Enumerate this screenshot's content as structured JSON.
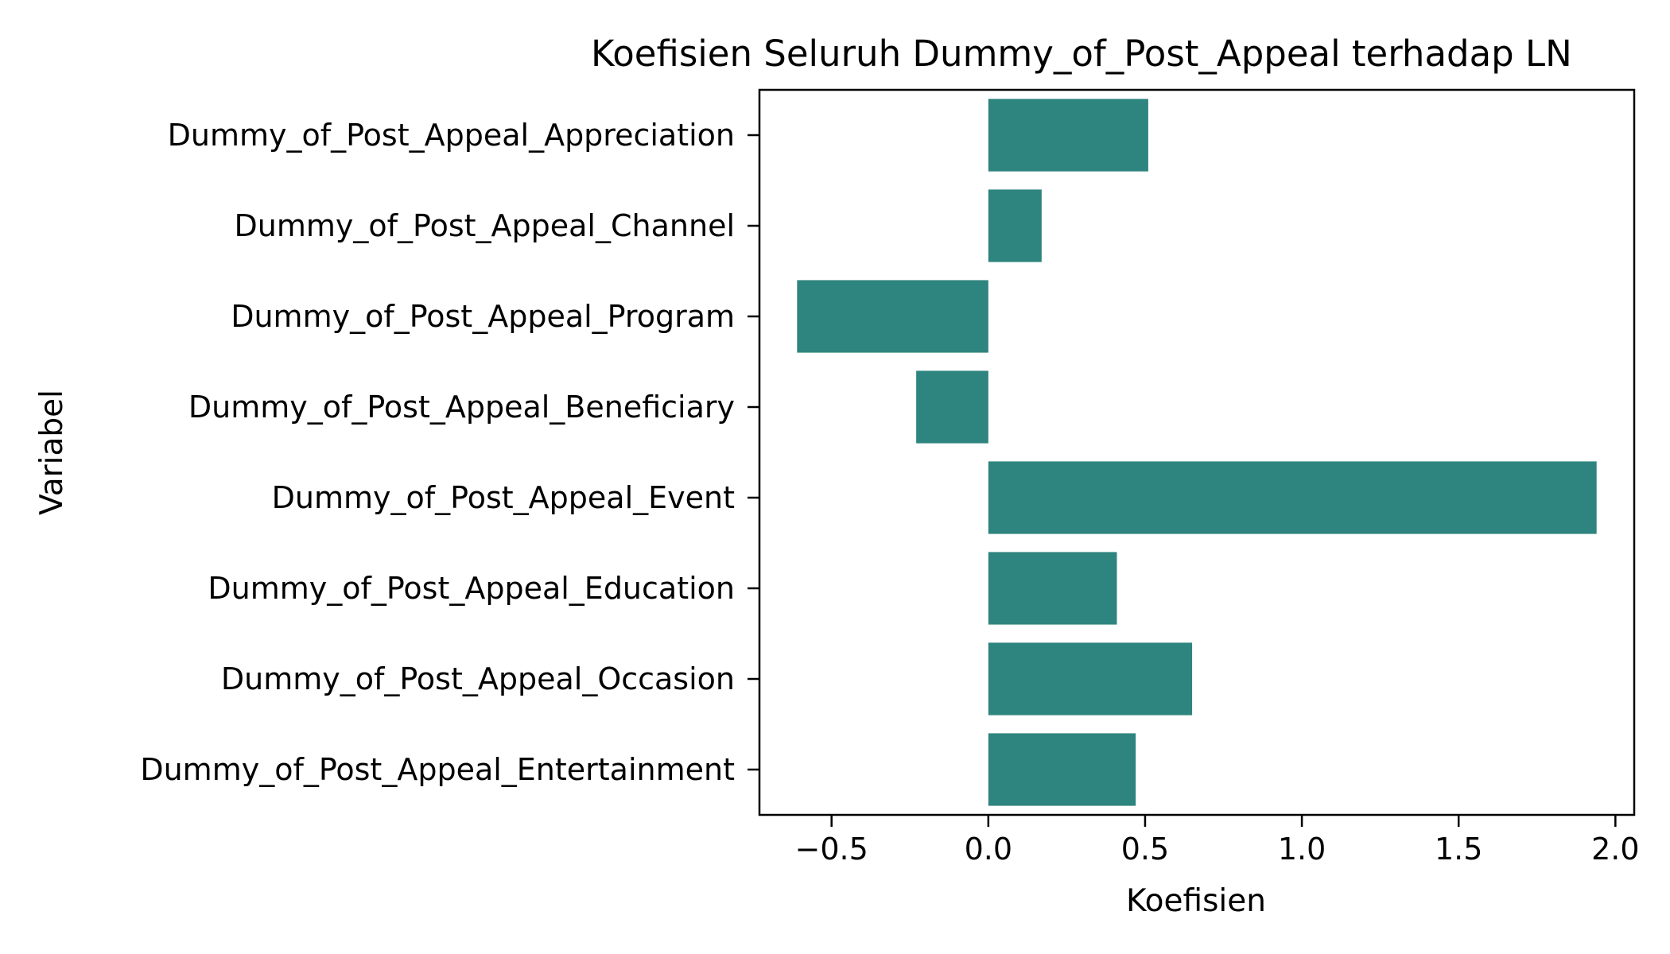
{
  "chart_data": {
    "type": "bar",
    "orientation": "horizontal",
    "title": "Koefisien Seluruh Dummy_of_Post_Appeal terhadap LN",
    "xlabel": "Koefisien",
    "ylabel": "Variabel",
    "categories": [
      "Dummy_of_Post_Appeal_Appreciation",
      "Dummy_of_Post_Appeal_Channel",
      "Dummy_of_Post_Appeal_Program",
      "Dummy_of_Post_Appeal_Beneficiary",
      "Dummy_of_Post_Appeal_Event",
      "Dummy_of_Post_Appeal_Education",
      "Dummy_of_Post_Appeal_Occasion",
      "Dummy_of_Post_Appeal_Entertainment"
    ],
    "values": [
      0.51,
      0.17,
      -0.61,
      -0.23,
      1.94,
      0.41,
      0.65,
      0.47
    ],
    "xlim": [
      -0.73,
      2.06
    ],
    "xticks": [
      -0.5,
      0.0,
      0.5,
      1.0,
      1.5,
      2.0
    ],
    "xtick_labels": [
      "−0.5",
      "0.0",
      "0.5",
      "1.0",
      "1.5",
      "2.0"
    ],
    "bar_color": "#2e847e",
    "grid": false,
    "legend": "none"
  }
}
